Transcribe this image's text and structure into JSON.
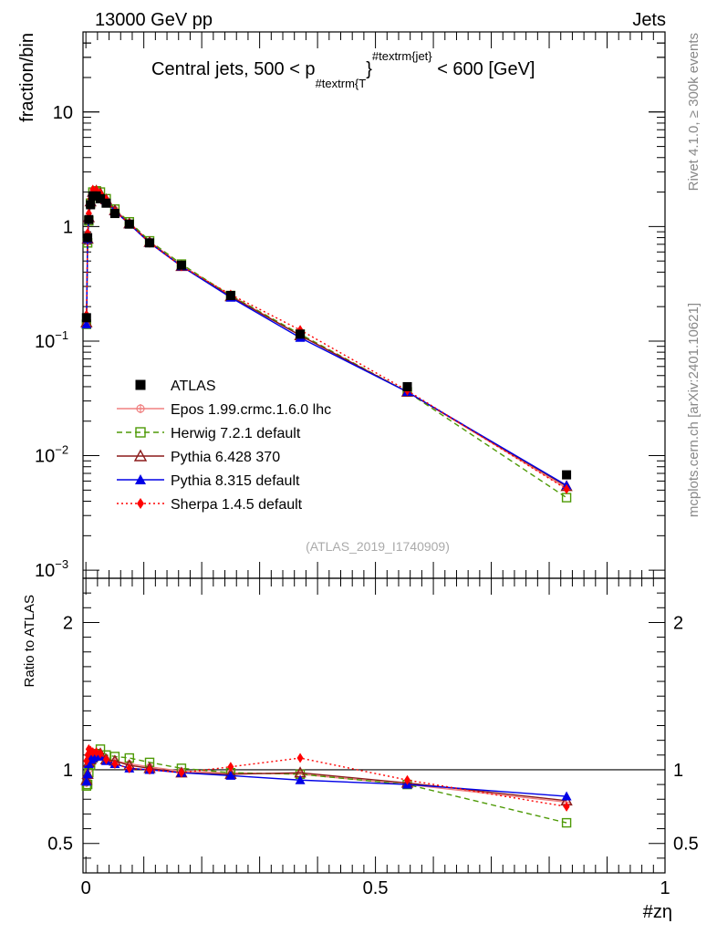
{
  "header": {
    "left_label": "13000 GeV pp",
    "right_label": "Jets"
  },
  "side_labels": {
    "rivet": "Rivet 4.1.0, ≥ 300k events",
    "mcplots": "mcplots.cern.ch [arXiv:2401.10621]"
  },
  "chart_data": [
    {
      "type": "line",
      "panel": "main",
      "title": "Central jets, 500 < p",
      "title_sub": "#textrm{T",
      "title_sup": "#textrm{jet}",
      "title_brace": "}",
      "title_tail": " < 600 [GeV]",
      "ylabel": "fraction/bin",
      "yscale": "log",
      "ylim": [
        0.00085,
        50
      ],
      "xlim": [
        -0.005,
        1.0
      ],
      "y_ticks": [
        {
          "value": 10,
          "label": "10",
          "exp": ""
        },
        {
          "value": 1,
          "label": "1",
          "exp": ""
        },
        {
          "value": 0.1,
          "label": "10",
          "exp": "−1"
        },
        {
          "value": 0.01,
          "label": "10",
          "exp": "−2"
        },
        {
          "value": 0.001,
          "label": "10",
          "exp": "−3"
        }
      ],
      "watermark": "(ATLAS_2019_I1740909)",
      "x": [
        0.001,
        0.003,
        0.005,
        0.008,
        0.012,
        0.018,
        0.025,
        0.035,
        0.05,
        0.075,
        0.11,
        0.165,
        0.25,
        0.37,
        0.555,
        0.83
      ],
      "series": [
        {
          "name": "ATLAS",
          "color": "#000000",
          "marker": "square-filled",
          "line": "none",
          "values": [
            0.16,
            0.8,
            1.15,
            1.55,
            1.85,
            1.85,
            1.75,
            1.6,
            1.3,
            1.05,
            0.72,
            0.46,
            0.25,
            0.115,
            0.04,
            0.0068
          ]
        },
        {
          "name": "Epos 1.99.crmc.1.6.0 lhc",
          "color": "#f08080",
          "marker": "plus-circle",
          "line": "solid",
          "values": [
            0.145,
            0.75,
            1.15,
            1.6,
            1.95,
            2.0,
            1.9,
            1.7,
            1.4,
            1.08,
            0.74,
            0.46,
            0.25,
            0.112,
            0.036,
            0.0052
          ]
        },
        {
          "name": "Herwig 7.2.1 default",
          "color": "#4e9a06",
          "marker": "square-open",
          "line": "dashed",
          "values": [
            0.14,
            0.72,
            1.12,
            1.6,
            2.0,
            2.05,
            2.0,
            1.75,
            1.42,
            1.1,
            0.75,
            0.47,
            0.25,
            0.115,
            0.036,
            0.0043
          ]
        },
        {
          "name": "Pythia 6.428 370",
          "color": "#8b1a1a",
          "marker": "triangle-open",
          "line": "solid",
          "values": [
            0.145,
            0.78,
            1.2,
            1.65,
            2.0,
            2.05,
            1.95,
            1.72,
            1.38,
            1.06,
            0.73,
            0.45,
            0.245,
            0.112,
            0.036,
            0.0054
          ]
        },
        {
          "name": "Pythia 8.315 default",
          "color": "#0000e6",
          "marker": "triangle-filled",
          "line": "solid",
          "values": [
            0.14,
            0.78,
            1.2,
            1.65,
            2.0,
            2.02,
            1.92,
            1.7,
            1.36,
            1.05,
            0.72,
            0.45,
            0.24,
            0.107,
            0.036,
            0.0055
          ]
        },
        {
          "name": "Sherpa 1.4.5 default",
          "color": "#ff0000",
          "marker": "diamond-filled",
          "line": "dotted",
          "values": [
            0.17,
            0.88,
            1.3,
            1.75,
            2.1,
            2.08,
            1.95,
            1.72,
            1.35,
            1.06,
            0.72,
            0.45,
            0.255,
            0.125,
            0.037,
            0.0051
          ]
        }
      ]
    },
    {
      "type": "line",
      "panel": "ratio",
      "ylabel": "Ratio to ATLAS",
      "xlabel": "#zη",
      "ylim": [
        0.3,
        2.3
      ],
      "xlim": [
        -0.005,
        1.0
      ],
      "y_ticks": [
        {
          "value": 0.5,
          "label": "0.5"
        },
        {
          "value": 1,
          "label": "1"
        },
        {
          "value": 2,
          "label": "2"
        }
      ],
      "x_ticks": [
        {
          "value": 0,
          "label": "0"
        },
        {
          "value": 0.5,
          "label": "0.5"
        },
        {
          "value": 1,
          "label": "1"
        }
      ],
      "reference": 1.0,
      "x": [
        0.001,
        0.003,
        0.005,
        0.008,
        0.012,
        0.018,
        0.025,
        0.035,
        0.05,
        0.075,
        0.11,
        0.165,
        0.25,
        0.37,
        0.555,
        0.83
      ],
      "series": [
        {
          "name": "Epos 1.99.crmc.1.6.0 lhc",
          "values": [
            0.91,
            0.94,
            1.0,
            1.03,
            1.05,
            1.08,
            1.09,
            1.07,
            1.06,
            1.04,
            1.02,
            0.99,
            0.98,
            0.97,
            0.9,
            0.78
          ]
        },
        {
          "name": "Herwig 7.2.1 default",
          "values": [
            0.89,
            0.9,
            0.98,
            1.03,
            1.08,
            1.11,
            1.14,
            1.1,
            1.09,
            1.08,
            1.05,
            1.01,
            0.98,
            0.97,
            0.9,
            0.64
          ]
        },
        {
          "name": "Pythia 6.428 370",
          "values": [
            0.93,
            0.97,
            1.05,
            1.07,
            1.09,
            1.11,
            1.11,
            1.07,
            1.06,
            1.03,
            1.01,
            0.98,
            0.97,
            0.98,
            0.91,
            0.79
          ]
        },
        {
          "name": "Pythia 8.315 default",
          "values": [
            0.92,
            0.97,
            1.04,
            1.07,
            1.08,
            1.09,
            1.09,
            1.06,
            1.04,
            1.01,
            1.0,
            0.98,
            0.96,
            0.93,
            0.9,
            0.82
          ]
        },
        {
          "name": "Sherpa 1.4.5 default",
          "values": [
            1.06,
            1.1,
            1.14,
            1.13,
            1.12,
            1.12,
            1.11,
            1.07,
            1.04,
            1.01,
            1.0,
            0.98,
            1.02,
            1.08,
            0.93,
            0.75
          ]
        }
      ]
    }
  ]
}
